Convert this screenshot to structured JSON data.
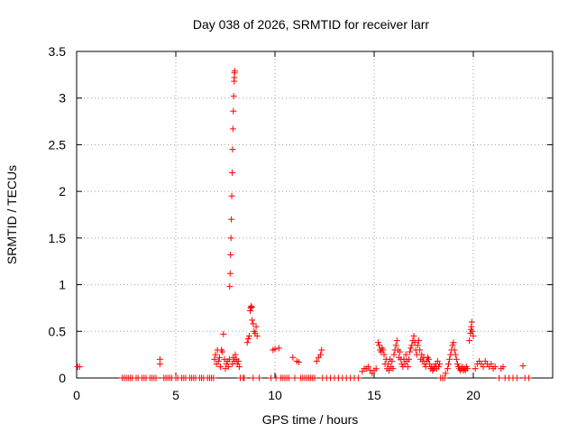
{
  "chart_data": {
    "type": "scatter",
    "title": "Day 038 of 2026, SRMTID for receiver larr",
    "xlabel": "GPS time / hours",
    "ylabel": "SRMTID / TECUs",
    "xlim": [
      0,
      24
    ],
    "ylim": [
      0,
      3.5
    ],
    "xticks": [
      0,
      5,
      10,
      15,
      20
    ],
    "xtick_labels": [
      "0",
      "5",
      "10",
      "15",
      "20"
    ],
    "yticks": [
      0,
      0.5,
      1,
      1.5,
      2,
      2.5,
      3,
      3.5
    ],
    "ytick_labels": [
      "0",
      "0.5",
      "1",
      "1.5",
      "2",
      "2.5",
      "3",
      "3.5"
    ],
    "grid": true,
    "marker": "+",
    "color": "#ff0000",
    "series": [
      {
        "name": "SRMTID",
        "points": [
          [
            0.05,
            0.12
          ],
          [
            0.15,
            0.12
          ],
          [
            2.3,
            0
          ],
          [
            2.4,
            0
          ],
          [
            2.5,
            0
          ],
          [
            2.6,
            0
          ],
          [
            2.7,
            0
          ],
          [
            2.8,
            0
          ],
          [
            3.0,
            0
          ],
          [
            3.1,
            0
          ],
          [
            3.3,
            0
          ],
          [
            3.4,
            0
          ],
          [
            3.5,
            0
          ],
          [
            3.7,
            0
          ],
          [
            3.8,
            0
          ],
          [
            3.9,
            0
          ],
          [
            4.0,
            0
          ],
          [
            4.4,
            0
          ],
          [
            4.5,
            0
          ],
          [
            4.6,
            0
          ],
          [
            4.7,
            0
          ],
          [
            4.8,
            0
          ],
          [
            5.0,
            0
          ],
          [
            5.1,
            0
          ],
          [
            5.3,
            0
          ],
          [
            5.4,
            0
          ],
          [
            5.5,
            0
          ],
          [
            5.7,
            0
          ],
          [
            5.8,
            0
          ],
          [
            5.9,
            0
          ],
          [
            6.0,
            0
          ],
          [
            6.2,
            0
          ],
          [
            6.3,
            0
          ],
          [
            6.4,
            0
          ],
          [
            6.6,
            0
          ],
          [
            6.7,
            0
          ],
          [
            6.8,
            0
          ],
          [
            4.2,
            0.15
          ],
          [
            4.2,
            0.2
          ],
          [
            6.9,
            0.0
          ],
          [
            6.95,
            0.2
          ],
          [
            7.0,
            0.25
          ],
          [
            7.05,
            0.15
          ],
          [
            7.1,
            0.3
          ],
          [
            7.15,
            0.18
          ],
          [
            7.2,
            0.22
          ],
          [
            7.25,
            0.12
          ],
          [
            7.3,
            0.3
          ],
          [
            7.35,
            0.28
          ],
          [
            7.4,
            0.47
          ],
          [
            7.45,
            0.2
          ],
          [
            7.5,
            0.1
          ],
          [
            7.55,
            0.15
          ],
          [
            7.6,
            0.18
          ],
          [
            7.65,
            0.12
          ],
          [
            7.7,
            0.2
          ],
          [
            7.72,
            0.98
          ],
          [
            7.74,
            1.12
          ],
          [
            7.76,
            1.32
          ],
          [
            7.78,
            1.5
          ],
          [
            7.8,
            1.7
          ],
          [
            7.82,
            1.95
          ],
          [
            7.84,
            2.2
          ],
          [
            7.86,
            2.45
          ],
          [
            7.88,
            2.67
          ],
          [
            7.9,
            2.86
          ],
          [
            7.92,
            3.02
          ],
          [
            7.94,
            3.18
          ],
          [
            7.95,
            3.22
          ],
          [
            7.96,
            3.27
          ],
          [
            7.97,
            3.29
          ],
          [
            7.85,
            0.15
          ],
          [
            7.9,
            0.22
          ],
          [
            7.95,
            0.18
          ],
          [
            8.0,
            0.25
          ],
          [
            8.05,
            0.2
          ],
          [
            8.1,
            0.15
          ],
          [
            8.15,
            0.18
          ],
          [
            8.2,
            0.12
          ],
          [
            8.25,
            0.0
          ],
          [
            8.4,
            0
          ],
          [
            8.45,
            0
          ],
          [
            8.6,
            0.38
          ],
          [
            8.65,
            0.42
          ],
          [
            8.7,
            0.45
          ],
          [
            8.75,
            0.72
          ],
          [
            8.78,
            0.75
          ],
          [
            8.8,
            0.77
          ],
          [
            8.82,
            0.76
          ],
          [
            8.85,
            0.62
          ],
          [
            8.9,
            0.58
          ],
          [
            8.95,
            0.5
          ],
          [
            9.0,
            0.48
          ],
          [
            9.05,
            0.55
          ],
          [
            9.1,
            0.45
          ],
          [
            8.9,
            0
          ],
          [
            9.2,
            0
          ],
          [
            9.8,
            0
          ],
          [
            9.9,
            0.3
          ],
          [
            10.0,
            0.31
          ],
          [
            10.05,
            0
          ],
          [
            10.2,
            0.32
          ],
          [
            10.3,
            0
          ],
          [
            10.4,
            0
          ],
          [
            10.5,
            0
          ],
          [
            10.6,
            0
          ],
          [
            10.7,
            0
          ],
          [
            10.9,
            0.22
          ],
          [
            11.0,
            0
          ],
          [
            11.1,
            0.18
          ],
          [
            11.2,
            0.17
          ],
          [
            11.3,
            0
          ],
          [
            11.4,
            0
          ],
          [
            11.5,
            0
          ],
          [
            11.6,
            0
          ],
          [
            11.7,
            0
          ],
          [
            11.8,
            0
          ],
          [
            11.9,
            0
          ],
          [
            12.0,
            0
          ],
          [
            12.1,
            0.18
          ],
          [
            12.2,
            0.22
          ],
          [
            12.3,
            0.25
          ],
          [
            12.35,
            0.3
          ],
          [
            12.4,
            0
          ],
          [
            12.6,
            0
          ],
          [
            12.8,
            0
          ],
          [
            13.0,
            0
          ],
          [
            13.2,
            0
          ],
          [
            13.4,
            0
          ],
          [
            13.6,
            0
          ],
          [
            13.8,
            0
          ],
          [
            14.0,
            0
          ],
          [
            14.2,
            0
          ],
          [
            14.4,
            0.07
          ],
          [
            14.5,
            0.1
          ],
          [
            14.6,
            0.1
          ],
          [
            14.7,
            0.12
          ],
          [
            14.8,
            0.08
          ],
          [
            14.9,
            0.05
          ],
          [
            15.0,
            0.08
          ],
          [
            15.1,
            0.1
          ],
          [
            15.2,
            0.38
          ],
          [
            15.25,
            0.35
          ],
          [
            15.3,
            0.3
          ],
          [
            15.35,
            0.28
          ],
          [
            15.4,
            0.32
          ],
          [
            15.45,
            0.3
          ],
          [
            15.5,
            0.25
          ],
          [
            15.55,
            0.15
          ],
          [
            15.6,
            0.2
          ],
          [
            15.65,
            0.1
          ],
          [
            15.7,
            0.15
          ],
          [
            15.75,
            0.08
          ],
          [
            15.8,
            0.2
          ],
          [
            15.85,
            0.12
          ],
          [
            15.9,
            0.18
          ],
          [
            15.95,
            0.1
          ],
          [
            16.0,
            0.25
          ],
          [
            16.05,
            0.3
          ],
          [
            16.1,
            0.35
          ],
          [
            16.15,
            0.4
          ],
          [
            16.2,
            0.3
          ],
          [
            16.25,
            0.22
          ],
          [
            16.3,
            0.28
          ],
          [
            16.35,
            0.2
          ],
          [
            16.4,
            0.15
          ],
          [
            16.45,
            0.12
          ],
          [
            16.5,
            0.2
          ],
          [
            16.55,
            0.15
          ],
          [
            16.6,
            0.25
          ],
          [
            16.65,
            0.18
          ],
          [
            16.7,
            0.12
          ],
          [
            16.75,
            0.2
          ],
          [
            16.8,
            0.28
          ],
          [
            16.85,
            0.32
          ],
          [
            16.9,
            0.35
          ],
          [
            16.95,
            0.4
          ],
          [
            17.0,
            0.45
          ],
          [
            17.05,
            0.38
          ],
          [
            17.1,
            0.3
          ],
          [
            17.15,
            0.25
          ],
          [
            17.2,
            0.35
          ],
          [
            17.25,
            0.4
          ],
          [
            17.3,
            0.3
          ],
          [
            17.35,
            0.2
          ],
          [
            17.4,
            0.25
          ],
          [
            17.45,
            0.18
          ],
          [
            17.5,
            0.22
          ],
          [
            17.55,
            0.15
          ],
          [
            17.6,
            0.12
          ],
          [
            17.65,
            0.18
          ],
          [
            17.7,
            0.22
          ],
          [
            17.75,
            0.2
          ],
          [
            17.8,
            0.15
          ],
          [
            17.85,
            0.1
          ],
          [
            17.9,
            0.12
          ],
          [
            17.95,
            0.08
          ],
          [
            18.0,
            0.1
          ],
          [
            18.05,
            0.12
          ],
          [
            18.1,
            0.15
          ],
          [
            18.15,
            0.1
          ],
          [
            18.2,
            0.18
          ],
          [
            18.25,
            0.12
          ],
          [
            18.3,
            0.15
          ],
          [
            18.35,
            0
          ],
          [
            18.45,
            0
          ],
          [
            18.55,
            0
          ],
          [
            18.6,
            0.05
          ],
          [
            18.7,
            0.1
          ],
          [
            18.75,
            0.15
          ],
          [
            18.8,
            0.2
          ],
          [
            18.85,
            0.25
          ],
          [
            18.9,
            0.3
          ],
          [
            18.95,
            0.35
          ],
          [
            19.0,
            0.38
          ],
          [
            19.05,
            0.3
          ],
          [
            19.1,
            0.25
          ],
          [
            19.15,
            0.2
          ],
          [
            19.2,
            0.15
          ],
          [
            19.25,
            0.12
          ],
          [
            19.3,
            0.1
          ],
          [
            19.35,
            0.08
          ],
          [
            19.4,
            0.1
          ],
          [
            19.45,
            0.12
          ],
          [
            19.5,
            0.08
          ],
          [
            19.55,
            0.1
          ],
          [
            19.6,
            0.08
          ],
          [
            19.65,
            0.12
          ],
          [
            19.7,
            0.1
          ],
          [
            19.8,
            0.4
          ],
          [
            19.85,
            0.48
          ],
          [
            19.88,
            0.52
          ],
          [
            19.9,
            0.55
          ],
          [
            19.92,
            0.6
          ],
          [
            19.95,
            0.5
          ],
          [
            20.0,
            0.45
          ],
          [
            20.1,
            0.1
          ],
          [
            20.2,
            0.15
          ],
          [
            20.3,
            0.18
          ],
          [
            20.4,
            0.15
          ],
          [
            20.5,
            0.12
          ],
          [
            20.6,
            0.18
          ],
          [
            20.7,
            0.15
          ],
          [
            20.8,
            0.12
          ],
          [
            20.9,
            0.15
          ],
          [
            21.0,
            0.1
          ],
          [
            21.1,
            0.12
          ],
          [
            21.3,
            0
          ],
          [
            21.4,
            0.1
          ],
          [
            21.5,
            0.12
          ],
          [
            21.6,
            0
          ],
          [
            21.8,
            0
          ],
          [
            22.0,
            0
          ],
          [
            22.2,
            0
          ],
          [
            22.5,
            0.13
          ],
          [
            22.6,
            0
          ],
          [
            22.8,
            0
          ]
        ]
      }
    ]
  }
}
